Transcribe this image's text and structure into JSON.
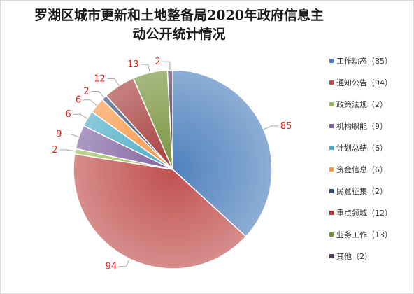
{
  "chart_data": {
    "type": "pie",
    "title": "罗湖区城市更新和土地整备局2020年政府信息主动公开统计情况",
    "title_lines": [
      "罗湖区城市更新和土地整备局2020年政府信息主",
      "动公开统计情况"
    ],
    "legend_position": "right",
    "label_color": "#e02020",
    "slices": [
      {
        "label": "工作动态",
        "legend": "工作动态（85）",
        "value": 85,
        "color": "#4f81bd"
      },
      {
        "label": "通知公告",
        "legend": "通知公告（94）",
        "value": 94,
        "color": "#c0504d"
      },
      {
        "label": "政策法规",
        "legend": "政策法规（2）",
        "value": 2,
        "color": "#9bbb59"
      },
      {
        "label": "机构职能",
        "legend": "机构职能（9）",
        "value": 9,
        "color": "#8064a2"
      },
      {
        "label": "计划总结",
        "legend": "计划总结（6）",
        "value": 6,
        "color": "#4bacc6"
      },
      {
        "label": "资金信息",
        "legend": "资金信息（6）",
        "value": 6,
        "color": "#f79646"
      },
      {
        "label": "民意征集",
        "legend": "民意征集（2）",
        "value": 2,
        "color": "#2c4d75"
      },
      {
        "label": "重点领域",
        "legend": "重点领域（12）",
        "value": 12,
        "color": "#a63e3b"
      },
      {
        "label": "业务工作",
        "legend": "业务工作（13）",
        "value": 13,
        "color": "#77933c"
      },
      {
        "label": "其他",
        "legend": "其他（2）",
        "value": 2,
        "color": "#4d3b62"
      }
    ]
  }
}
